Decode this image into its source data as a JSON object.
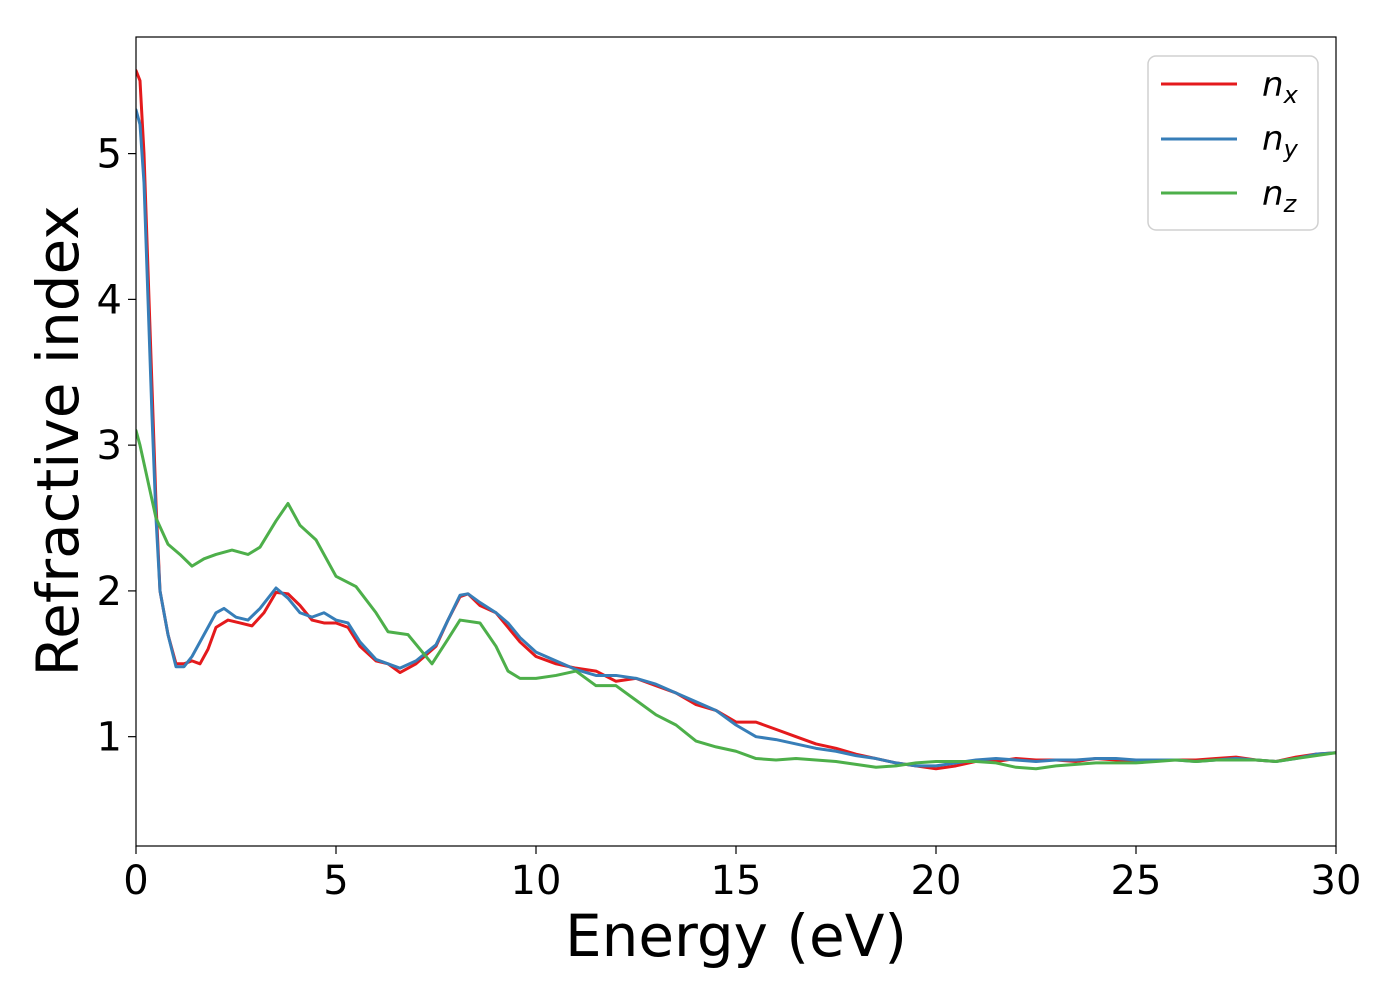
{
  "chart_data": {
    "type": "line",
    "title": "",
    "xlabel": "Energy (eV)",
    "ylabel": "Refractive index",
    "xlim": [
      0,
      30
    ],
    "ylim": [
      0.25,
      5.8
    ],
    "xticks": [
      0,
      5,
      10,
      15,
      20,
      25,
      30
    ],
    "yticks": [
      1,
      2,
      3,
      4,
      5
    ],
    "grid": false,
    "legend_position": "top-right",
    "series": [
      {
        "name": "n_x",
        "label_main": "n",
        "label_sub": "x",
        "color": "#e41a1c",
        "points": [
          [
            0,
            5.57
          ],
          [
            0.1,
            5.5
          ],
          [
            0.2,
            5.0
          ],
          [
            0.3,
            4.2
          ],
          [
            0.4,
            3.4
          ],
          [
            0.5,
            2.6
          ],
          [
            0.6,
            2.0
          ],
          [
            0.8,
            1.7
          ],
          [
            1.0,
            1.5
          ],
          [
            1.2,
            1.5
          ],
          [
            1.4,
            1.52
          ],
          [
            1.6,
            1.5
          ],
          [
            1.8,
            1.6
          ],
          [
            2.0,
            1.75
          ],
          [
            2.3,
            1.8
          ],
          [
            2.6,
            1.78
          ],
          [
            2.9,
            1.76
          ],
          [
            3.2,
            1.85
          ],
          [
            3.5,
            1.99
          ],
          [
            3.8,
            1.98
          ],
          [
            4.1,
            1.9
          ],
          [
            4.4,
            1.8
          ],
          [
            4.7,
            1.78
          ],
          [
            5.0,
            1.78
          ],
          [
            5.3,
            1.75
          ],
          [
            5.6,
            1.62
          ],
          [
            6.0,
            1.52
          ],
          [
            6.3,
            1.5
          ],
          [
            6.6,
            1.44
          ],
          [
            7.0,
            1.5
          ],
          [
            7.5,
            1.62
          ],
          [
            7.8,
            1.8
          ],
          [
            8.1,
            1.96
          ],
          [
            8.3,
            1.98
          ],
          [
            8.6,
            1.9
          ],
          [
            9.0,
            1.85
          ],
          [
            9.3,
            1.75
          ],
          [
            9.6,
            1.65
          ],
          [
            10.0,
            1.55
          ],
          [
            10.5,
            1.5
          ],
          [
            11.0,
            1.47
          ],
          [
            11.5,
            1.45
          ],
          [
            12.0,
            1.38
          ],
          [
            12.5,
            1.4
          ],
          [
            13.0,
            1.35
          ],
          [
            13.5,
            1.3
          ],
          [
            14.0,
            1.22
          ],
          [
            14.5,
            1.18
          ],
          [
            15.0,
            1.1
          ],
          [
            15.5,
            1.1
          ],
          [
            16.0,
            1.05
          ],
          [
            16.5,
            1.0
          ],
          [
            17.0,
            0.95
          ],
          [
            17.5,
            0.92
          ],
          [
            18.0,
            0.88
          ],
          [
            18.5,
            0.85
          ],
          [
            19.0,
            0.82
          ],
          [
            19.5,
            0.8
          ],
          [
            20.0,
            0.78
          ],
          [
            20.5,
            0.8
          ],
          [
            21.0,
            0.83
          ],
          [
            21.5,
            0.83
          ],
          [
            22.0,
            0.85
          ],
          [
            22.5,
            0.84
          ],
          [
            23.0,
            0.84
          ],
          [
            23.5,
            0.83
          ],
          [
            24.0,
            0.85
          ],
          [
            24.5,
            0.84
          ],
          [
            25.0,
            0.84
          ],
          [
            25.5,
            0.84
          ],
          [
            26.0,
            0.84
          ],
          [
            26.5,
            0.84
          ],
          [
            27.0,
            0.85
          ],
          [
            27.5,
            0.86
          ],
          [
            28.0,
            0.84
          ],
          [
            28.5,
            0.83
          ],
          [
            29.0,
            0.86
          ],
          [
            29.5,
            0.88
          ],
          [
            30.0,
            0.89
          ]
        ]
      },
      {
        "name": "n_y",
        "label_main": "n",
        "label_sub": "y",
        "color": "#377eb8",
        "points": [
          [
            0,
            5.3
          ],
          [
            0.1,
            5.2
          ],
          [
            0.2,
            4.8
          ],
          [
            0.3,
            4.0
          ],
          [
            0.4,
            3.2
          ],
          [
            0.5,
            2.5
          ],
          [
            0.6,
            2.0
          ],
          [
            0.8,
            1.7
          ],
          [
            1.0,
            1.48
          ],
          [
            1.2,
            1.48
          ],
          [
            1.4,
            1.55
          ],
          [
            1.7,
            1.7
          ],
          [
            2.0,
            1.85
          ],
          [
            2.2,
            1.88
          ],
          [
            2.5,
            1.82
          ],
          [
            2.8,
            1.8
          ],
          [
            3.1,
            1.88
          ],
          [
            3.5,
            2.02
          ],
          [
            3.8,
            1.95
          ],
          [
            4.1,
            1.85
          ],
          [
            4.4,
            1.82
          ],
          [
            4.7,
            1.85
          ],
          [
            5.0,
            1.8
          ],
          [
            5.3,
            1.78
          ],
          [
            5.6,
            1.65
          ],
          [
            6.0,
            1.53
          ],
          [
            6.3,
            1.5
          ],
          [
            6.6,
            1.47
          ],
          [
            7.0,
            1.52
          ],
          [
            7.5,
            1.63
          ],
          [
            7.8,
            1.8
          ],
          [
            8.1,
            1.97
          ],
          [
            8.3,
            1.98
          ],
          [
            8.6,
            1.92
          ],
          [
            9.0,
            1.85
          ],
          [
            9.3,
            1.78
          ],
          [
            9.6,
            1.68
          ],
          [
            10.0,
            1.58
          ],
          [
            10.5,
            1.52
          ],
          [
            11.0,
            1.46
          ],
          [
            11.5,
            1.42
          ],
          [
            12.0,
            1.42
          ],
          [
            12.5,
            1.4
          ],
          [
            13.0,
            1.36
          ],
          [
            13.5,
            1.3
          ],
          [
            14.0,
            1.24
          ],
          [
            14.5,
            1.18
          ],
          [
            15.0,
            1.08
          ],
          [
            15.5,
            1.0
          ],
          [
            16.0,
            0.98
          ],
          [
            16.5,
            0.95
          ],
          [
            17.0,
            0.92
          ],
          [
            17.5,
            0.9
          ],
          [
            18.0,
            0.87
          ],
          [
            18.5,
            0.85
          ],
          [
            19.0,
            0.82
          ],
          [
            19.5,
            0.8
          ],
          [
            20.0,
            0.8
          ],
          [
            20.5,
            0.82
          ],
          [
            21.0,
            0.84
          ],
          [
            21.5,
            0.85
          ],
          [
            22.0,
            0.84
          ],
          [
            22.5,
            0.83
          ],
          [
            23.0,
            0.84
          ],
          [
            23.5,
            0.84
          ],
          [
            24.0,
            0.85
          ],
          [
            24.5,
            0.85
          ],
          [
            25.0,
            0.84
          ],
          [
            25.5,
            0.84
          ],
          [
            26.0,
            0.84
          ],
          [
            26.5,
            0.83
          ],
          [
            27.0,
            0.84
          ],
          [
            27.5,
            0.85
          ],
          [
            28.0,
            0.84
          ],
          [
            28.5,
            0.83
          ],
          [
            29.0,
            0.85
          ],
          [
            29.5,
            0.88
          ],
          [
            30.0,
            0.89
          ]
        ]
      },
      {
        "name": "n_z",
        "label_main": "n",
        "label_sub": "z",
        "color": "#4daf4a",
        "points": [
          [
            0,
            3.1
          ],
          [
            0.1,
            3.0
          ],
          [
            0.3,
            2.75
          ],
          [
            0.5,
            2.5
          ],
          [
            0.8,
            2.32
          ],
          [
            1.1,
            2.25
          ],
          [
            1.4,
            2.17
          ],
          [
            1.7,
            2.22
          ],
          [
            2.0,
            2.25
          ],
          [
            2.4,
            2.28
          ],
          [
            2.8,
            2.25
          ],
          [
            3.1,
            2.3
          ],
          [
            3.5,
            2.48
          ],
          [
            3.8,
            2.6
          ],
          [
            4.1,
            2.45
          ],
          [
            4.5,
            2.35
          ],
          [
            5.0,
            2.1
          ],
          [
            5.5,
            2.03
          ],
          [
            6.0,
            1.85
          ],
          [
            6.3,
            1.72
          ],
          [
            6.8,
            1.7
          ],
          [
            7.1,
            1.6
          ],
          [
            7.4,
            1.5
          ],
          [
            7.8,
            1.67
          ],
          [
            8.1,
            1.8
          ],
          [
            8.6,
            1.78
          ],
          [
            9.0,
            1.62
          ],
          [
            9.3,
            1.45
          ],
          [
            9.6,
            1.4
          ],
          [
            10.0,
            1.4
          ],
          [
            10.5,
            1.42
          ],
          [
            11.0,
            1.45
          ],
          [
            11.5,
            1.35
          ],
          [
            12.0,
            1.35
          ],
          [
            12.5,
            1.25
          ],
          [
            13.0,
            1.15
          ],
          [
            13.5,
            1.08
          ],
          [
            14.0,
            0.97
          ],
          [
            14.5,
            0.93
          ],
          [
            15.0,
            0.9
          ],
          [
            15.5,
            0.85
          ],
          [
            16.0,
            0.84
          ],
          [
            16.5,
            0.85
          ],
          [
            17.0,
            0.84
          ],
          [
            17.5,
            0.83
          ],
          [
            18.0,
            0.81
          ],
          [
            18.5,
            0.79
          ],
          [
            19.0,
            0.8
          ],
          [
            19.5,
            0.82
          ],
          [
            20.0,
            0.83
          ],
          [
            20.5,
            0.83
          ],
          [
            21.0,
            0.83
          ],
          [
            21.5,
            0.82
          ],
          [
            22.0,
            0.79
          ],
          [
            22.5,
            0.78
          ],
          [
            23.0,
            0.8
          ],
          [
            23.5,
            0.81
          ],
          [
            24.0,
            0.82
          ],
          [
            24.5,
            0.82
          ],
          [
            25.0,
            0.82
          ],
          [
            25.5,
            0.83
          ],
          [
            26.0,
            0.84
          ],
          [
            26.5,
            0.83
          ],
          [
            27.0,
            0.84
          ],
          [
            27.5,
            0.84
          ],
          [
            28.0,
            0.84
          ],
          [
            28.5,
            0.83
          ],
          [
            29.0,
            0.85
          ],
          [
            29.5,
            0.87
          ],
          [
            30.0,
            0.89
          ]
        ]
      }
    ]
  }
}
